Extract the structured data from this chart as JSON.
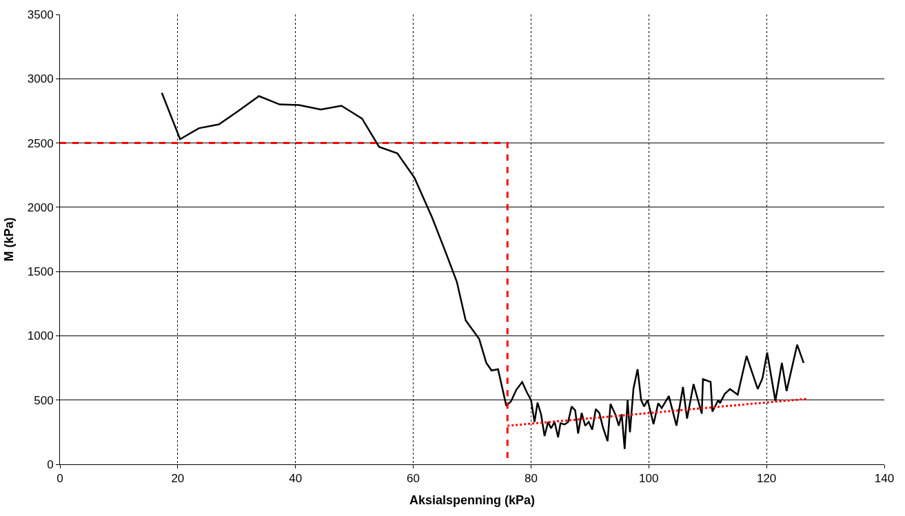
{
  "chart_data": {
    "type": "line",
    "xlabel": "Aksialspenning (kPa)",
    "ylabel": "M (kPa)",
    "xlim": [
      0,
      140
    ],
    "xticks": [
      0,
      20,
      40,
      60,
      80,
      100,
      120,
      140
    ],
    "ylim": [
      0,
      3500
    ],
    "yticks": [
      0,
      500,
      1000,
      1500,
      2000,
      2500,
      3000,
      3500
    ],
    "grid": true,
    "marker": "none",
    "series": [
      {
        "color": "#000000",
        "line_style": "solid",
        "x": [
          17.3,
          20.4,
          23.6,
          27,
          30.3,
          33.8,
          37.3,
          40.6,
          44.3,
          47.8,
          51.3,
          54.2,
          57.3,
          60.2,
          63.2,
          65.5,
          67.4,
          68.9,
          71.2,
          72.4,
          73.3,
          74.4,
          75.8,
          76.6,
          77.5,
          78.5,
          79.3,
          80,
          80.6,
          81.1,
          81.7,
          82.3,
          82.9,
          83.4,
          84,
          84.6,
          85,
          85.7,
          86.3,
          86.9,
          87.5,
          88,
          88.6,
          89.2,
          89.8,
          90.4,
          91,
          91.6,
          92.2,
          93,
          93.5,
          94.4,
          94.9,
          95.4,
          95.9,
          96.4,
          96.8,
          97.4,
          98.1,
          98.7,
          99.2,
          99.8,
          100.4,
          100.8,
          101.6,
          102.2,
          103.4,
          104.7,
          105.8,
          106.5,
          107.6,
          109,
          109.2,
          110.5,
          110.8,
          111.8,
          112.1,
          112.9,
          113.8,
          115.1,
          116.6,
          118.5,
          119.3,
          120.1,
          121.5,
          122.6,
          123.4,
          125.2,
          126.3
        ],
        "values": [
          2890,
          2530,
          2615,
          2645,
          2750,
          2865,
          2800,
          2795,
          2760,
          2790,
          2690,
          2470,
          2420,
          2230,
          1920,
          1650,
          1420,
          1120,
          975,
          790,
          730,
          740,
          455,
          490,
          580,
          640,
          560,
          500,
          330,
          480,
          390,
          220,
          330,
          280,
          330,
          210,
          320,
          310,
          330,
          450,
          420,
          240,
          400,
          300,
          330,
          270,
          430,
          400,
          290,
          180,
          470,
          380,
          300,
          390,
          120,
          500,
          250,
          590,
          740,
          500,
          450,
          500,
          390,
          312,
          476,
          438,
          531,
          301,
          602,
          356,
          624,
          394,
          663,
          641,
          411,
          500,
          476,
          548,
          586,
          542,
          843,
          586,
          668,
          870,
          493,
          789,
          570,
          931,
          789
        ]
      },
      {
        "color": "#ff0000",
        "line_style": "dashed",
        "x": [
          0,
          76,
          76
        ],
        "values": [
          2500,
          2500,
          50
        ]
      },
      {
        "color": "#ff0000",
        "line_style": "dotted",
        "x": [
          76,
          127
        ],
        "values": [
          300,
          510
        ]
      }
    ]
  }
}
